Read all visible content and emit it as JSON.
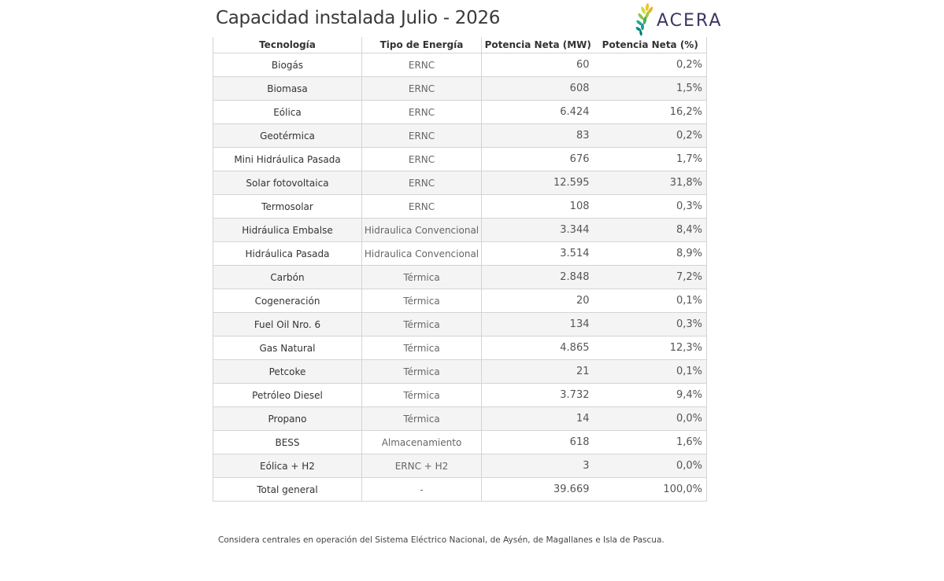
{
  "title": "Capacidad instalada Julio - 2026",
  "logo": {
    "text": "ACERA",
    "icon": "sunflower-petal-logo-icon"
  },
  "table": {
    "headers": [
      "Tecnología",
      "Tipo de Energía",
      "Potencia Neta (MW)",
      "Potencia Neta (%)"
    ],
    "rows": [
      {
        "tecnologia": "Biogás",
        "tipo": "ERNC",
        "mw": "60",
        "pct": "0,2%"
      },
      {
        "tecnologia": "Biomasa",
        "tipo": "ERNC",
        "mw": "608",
        "pct": "1,5%"
      },
      {
        "tecnologia": "Eólica",
        "tipo": "ERNC",
        "mw": "6.424",
        "pct": "16,2%"
      },
      {
        "tecnologia": "Geotérmica",
        "tipo": "ERNC",
        "mw": "83",
        "pct": "0,2%"
      },
      {
        "tecnologia": "Mini Hidráulica Pasada",
        "tipo": "ERNC",
        "mw": "676",
        "pct": "1,7%"
      },
      {
        "tecnologia": "Solar fotovoltaica",
        "tipo": "ERNC",
        "mw": "12.595",
        "pct": "31,8%"
      },
      {
        "tecnologia": "Termosolar",
        "tipo": "ERNC",
        "mw": "108",
        "pct": "0,3%"
      },
      {
        "tecnologia": "Hidráulica Embalse",
        "tipo": "Hidraulica Convencional",
        "mw": "3.344",
        "pct": "8,4%"
      },
      {
        "tecnologia": "Hidráulica Pasada",
        "tipo": "Hidraulica Convencional",
        "mw": "3.514",
        "pct": "8,9%"
      },
      {
        "tecnologia": "Carbón",
        "tipo": "Térmica",
        "mw": "2.848",
        "pct": "7,2%"
      },
      {
        "tecnologia": "Cogeneración",
        "tipo": "Térmica",
        "mw": "20",
        "pct": "0,1%"
      },
      {
        "tecnologia": "Fuel Oil Nro. 6",
        "tipo": "Térmica",
        "mw": "134",
        "pct": "0,3%"
      },
      {
        "tecnologia": "Gas Natural",
        "tipo": "Térmica",
        "mw": "4.865",
        "pct": "12,3%"
      },
      {
        "tecnologia": "Petcoke",
        "tipo": "Térmica",
        "mw": "21",
        "pct": "0,1%"
      },
      {
        "tecnologia": "Petróleo Diesel",
        "tipo": "Térmica",
        "mw": "3.732",
        "pct": "9,4%"
      },
      {
        "tecnologia": "Propano",
        "tipo": "Térmica",
        "mw": "14",
        "pct": "0,0%"
      },
      {
        "tecnologia": "BESS",
        "tipo": "Almacenamiento",
        "mw": "618",
        "pct": "1,6%"
      },
      {
        "tecnologia": "Eólica + H2",
        "tipo": "ERNC + H2",
        "mw": "3",
        "pct": "0,0%"
      },
      {
        "tecnologia": "Total general",
        "tipo": "-",
        "mw": "39.669",
        "pct": "100,0%"
      }
    ]
  },
  "footnote": "Considera centrales en operación del Sistema Eléctrico Nacional, de Aysén, de Magallanes e Isla de Pascua.",
  "colors": {
    "logo_text": "#3d3566",
    "logo_petals": [
      "#f2c230",
      "#8bc34a",
      "#26a69a",
      "#00897b"
    ],
    "row_alt": "#f4f4f4"
  }
}
